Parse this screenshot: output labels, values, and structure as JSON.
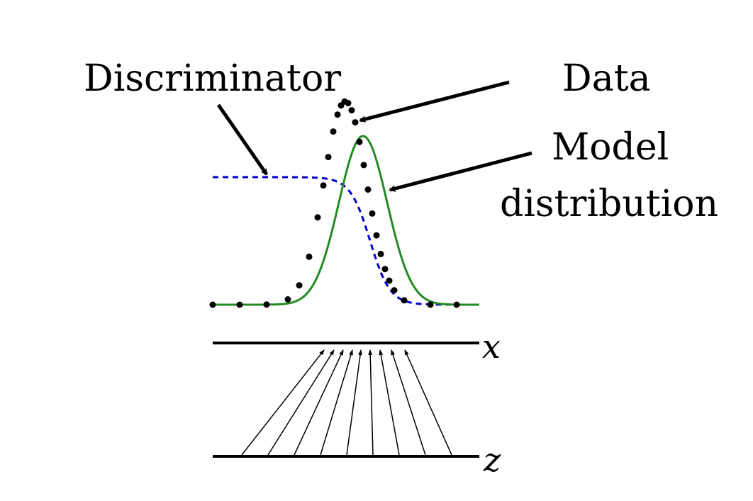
{
  "labels": {
    "discriminator": "Discriminator",
    "data": "Data",
    "model_line1": "Model",
    "model_line2": "distribution",
    "x_axis": "x",
    "z_axis": "z"
  },
  "colors": {
    "data_dots": "#000000",
    "model_curve": "#228B22",
    "discriminator_curve": "#0000CC",
    "axes": "#000000"
  }
}
